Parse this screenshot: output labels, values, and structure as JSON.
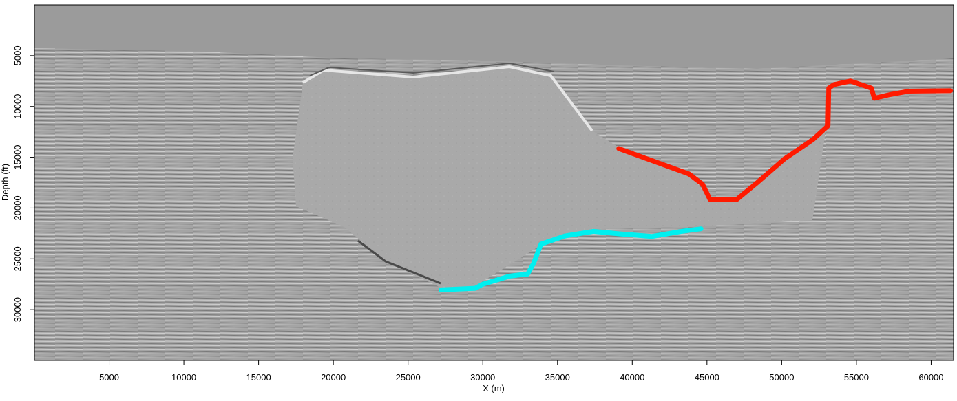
{
  "chart_data": {
    "type": "line",
    "x_label": "X (m)",
    "y_label": "Depth (ft)",
    "xlim": [
      0,
      61500
    ],
    "ylim": [
      35000,
      0
    ],
    "xticks": [
      5000,
      10000,
      15000,
      20000,
      25000,
      30000,
      35000,
      40000,
      45000,
      50000,
      55000,
      60000
    ],
    "yticks": [
      5000,
      10000,
      15000,
      20000,
      25000,
      30000
    ],
    "series": [
      {
        "color": "#ff1a00",
        "x": [
          39100,
          43800,
          44700,
          45200,
          47000,
          48400,
          50200,
          52100,
          53100,
          53150,
          53500,
          54600,
          56000,
          56200,
          57200,
          58500,
          61300
        ],
        "values": [
          14150,
          16650,
          17650,
          19150,
          19150,
          17450,
          15150,
          13250,
          11900,
          8200,
          7850,
          7500,
          8200,
          9200,
          8850,
          8500,
          8450
        ]
      },
      {
        "color": "#00f0f0",
        "x": [
          27200,
          29500,
          30000,
          31800,
          33000,
          33400,
          33900,
          35500,
          37400,
          39200,
          41300,
          43300,
          44600
        ],
        "values": [
          28050,
          27900,
          27500,
          26700,
          26500,
          25450,
          23550,
          22750,
          22300,
          22550,
          22800,
          22300,
          22050
        ]
      }
    ]
  }
}
